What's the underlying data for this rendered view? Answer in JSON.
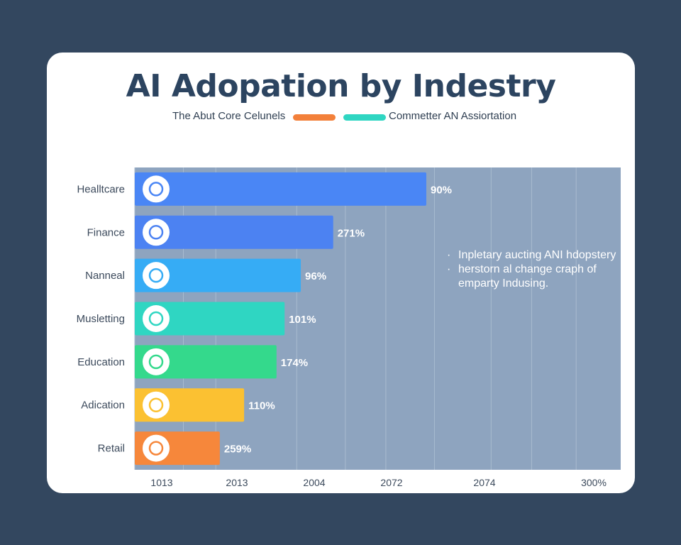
{
  "chart_data": {
    "type": "bar",
    "orientation": "horizontal",
    "title": "AI Adopation by Indestry",
    "legend": [
      {
        "label": "The Abut Core Celunels",
        "color": "#f3803a"
      },
      {
        "label": "Commetter AN Assiortation",
        "color": "#2fd6c2"
      }
    ],
    "categories": [
      "Healltcare",
      "Finance",
      "Nanneal",
      "Musletting",
      "Education",
      "Adication",
      "Retail"
    ],
    "values": [
      72,
      49,
      41,
      37,
      35,
      27,
      21
    ],
    "value_labels": [
      "90%",
      "271%",
      "96%",
      "101%",
      "174%",
      "110%",
      "259%"
    ],
    "bar_colors": [
      "#4a86f5",
      "#4c82f2",
      "#36acf5",
      "#2fd6c2",
      "#34d98c",
      "#fbc132",
      "#f6873b"
    ],
    "icons": [
      "lightbulb-icon",
      "heart-icon",
      "laptop-icon",
      "device-icon",
      "leaf-icon",
      "money-icon",
      "truck-icon"
    ],
    "x_ticks": [
      "1013",
      "2013",
      "2004",
      "2072",
      "2074",
      "300%"
    ],
    "xlim": [
      0,
      120
    ],
    "grid": true,
    "legend_position": "top"
  },
  "annotation": {
    "lines": [
      "Inpletary aucting ANI hdopstery",
      "herstorn al change craph of",
      "emparty Indusing."
    ]
  },
  "colors": {
    "background": "#33475f",
    "plot_area": "#8ea4bf",
    "title": "#2c4460"
  }
}
